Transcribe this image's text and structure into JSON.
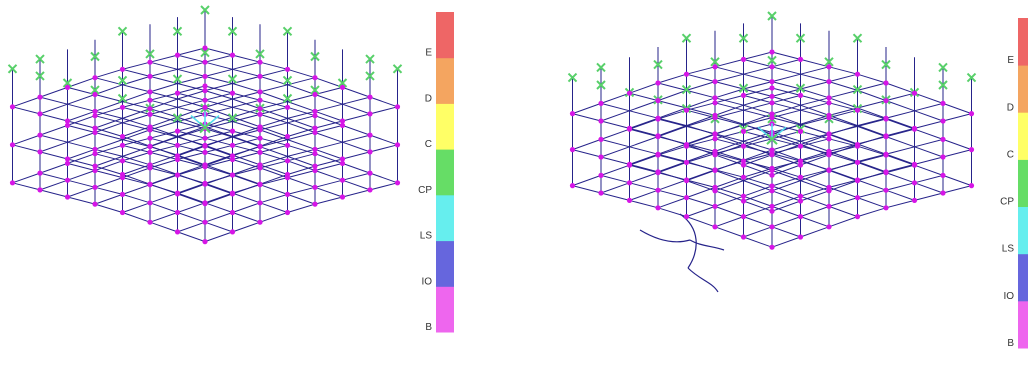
{
  "legend_levels": [
    {
      "label": "B",
      "color": "#ee66ee"
    },
    {
      "label": "IO",
      "color": "#6666dd"
    },
    {
      "label": "LS",
      "color": "#66eeee"
    },
    {
      "label": "CP",
      "color": "#66dd66"
    },
    {
      "label": "C",
      "color": "#ffff66"
    },
    {
      "label": "D",
      "color": "#f4a560"
    },
    {
      "label": "E",
      "color": "#ee6666"
    }
  ],
  "colors": {
    "frame": "#26238a",
    "joint": "#d616e6",
    "hinge": "#58d06a",
    "base_arrow": "#55ddee"
  }
}
